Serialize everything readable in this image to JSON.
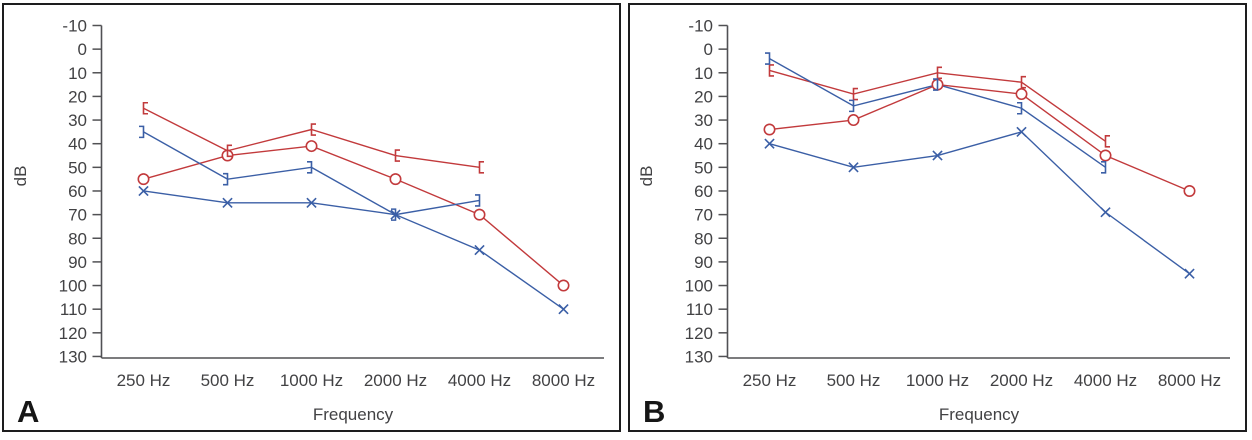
{
  "figure": {
    "background": "#ffffff",
    "panels": [
      {
        "label": "A"
      },
      {
        "label": "B"
      }
    ]
  },
  "colors": {
    "red_series": "#c23a3c",
    "blue_series": "#3b5fa6",
    "axis": "#515154",
    "text": "#424244",
    "panel_border": "#1d1d1e",
    "background": "#ffffff"
  },
  "chart_data": [
    {
      "type": "line",
      "panel": "A",
      "xlabel": "Frequency",
      "ylabel": "dB",
      "categories": [
        "250 Hz",
        "500 Hz",
        "1000 Hz",
        "2000 Hz",
        "4000 Hz",
        "8000 Hz"
      ],
      "y_ticks": [
        -10,
        0,
        10,
        20,
        30,
        40,
        50,
        60,
        70,
        80,
        90,
        100,
        110,
        120,
        130
      ],
      "y_axis": {
        "min": -10,
        "max": 130,
        "inverted": true,
        "unit": "dB"
      },
      "grid": false,
      "legend": null,
      "series": [
        {
          "name": "bone-conduction-right",
          "marker": "left-bracket",
          "color": "#c23a3c",
          "values": [
            25,
            43,
            34,
            45,
            50,
            null
          ]
        },
        {
          "name": "air-conduction-right",
          "marker": "circle",
          "color": "#c23a3c",
          "values": [
            55,
            45,
            41,
            55,
            70,
            100
          ]
        },
        {
          "name": "bone-conduction-left",
          "marker": "right-bracket",
          "color": "#3b5fa6",
          "values": [
            35,
            55,
            50,
            70,
            64,
            null
          ]
        },
        {
          "name": "air-conduction-left",
          "marker": "x",
          "color": "#3b5fa6",
          "values": [
            60,
            65,
            65,
            70,
            85,
            110
          ]
        }
      ]
    },
    {
      "type": "line",
      "panel": "B",
      "xlabel": "Frequency",
      "ylabel": "dB",
      "categories": [
        "250 Hz",
        "500 Hz",
        "1000 Hz",
        "2000 Hz",
        "4000 Hz",
        "8000 Hz"
      ],
      "y_ticks": [
        -10,
        0,
        10,
        20,
        30,
        40,
        50,
        60,
        70,
        80,
        90,
        100,
        110,
        120,
        130
      ],
      "y_axis": {
        "min": -10,
        "max": 130,
        "inverted": true,
        "unit": "dB"
      },
      "grid": false,
      "legend": null,
      "series": [
        {
          "name": "bone-conduction-right",
          "marker": "left-bracket",
          "color": "#c23a3c",
          "values": [
            9,
            19,
            10,
            14,
            39,
            null
          ]
        },
        {
          "name": "air-conduction-right",
          "marker": "circle",
          "color": "#c23a3c",
          "values": [
            34,
            30,
            15,
            19,
            45,
            60
          ]
        },
        {
          "name": "bone-conduction-left",
          "marker": "right-bracket",
          "color": "#3b5fa6",
          "values": [
            4,
            24,
            15,
            25,
            50,
            null
          ]
        },
        {
          "name": "air-conduction-left",
          "marker": "x",
          "color": "#3b5fa6",
          "values": [
            40,
            50,
            45,
            35,
            69,
            95
          ]
        }
      ]
    }
  ]
}
